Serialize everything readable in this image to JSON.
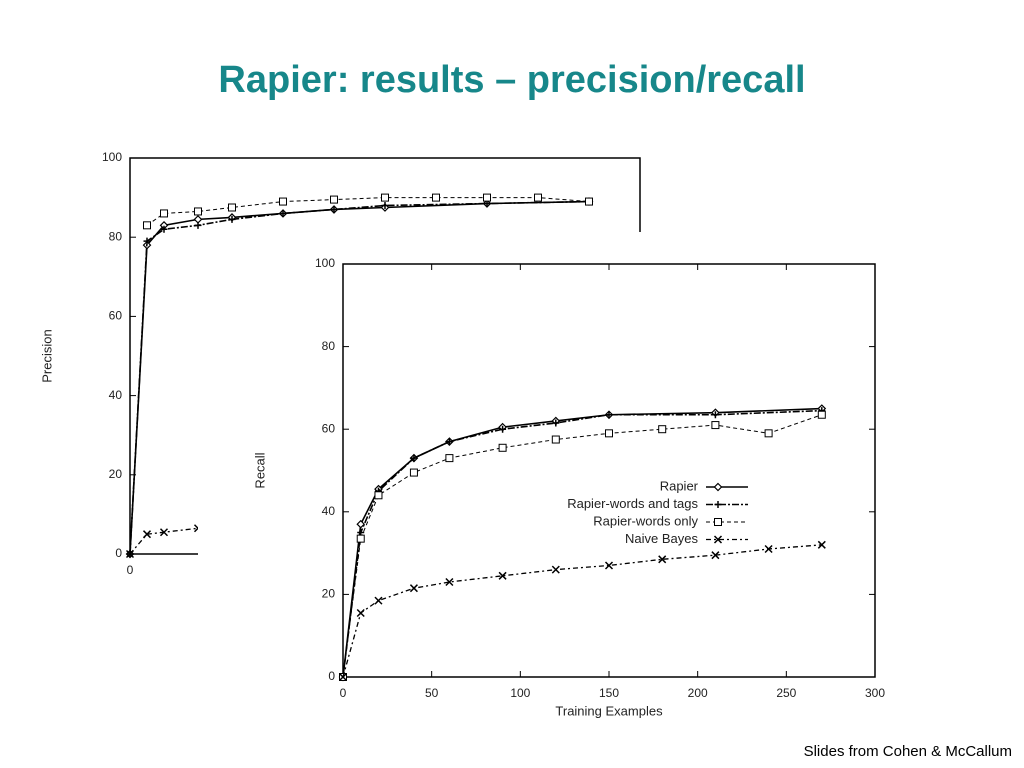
{
  "title": "Rapier: results – precision/recall",
  "footer": "Slides from Cohen & McCallum",
  "chart_data": [
    {
      "type": "line",
      "ylabel": "Precision",
      "xlim": [
        0,
        300
      ],
      "ylim": [
        0,
        100
      ],
      "xticks": [
        0
      ],
      "yticks": [
        0,
        20,
        40,
        60,
        80,
        100
      ],
      "series": [
        {
          "name": "Rapier",
          "color": "#000000",
          "marker": "diamond",
          "line_style": "solid",
          "x": [
            0,
            10,
            20,
            40,
            60,
            90,
            120,
            150,
            210,
            270
          ],
          "values": [
            0,
            78,
            83,
            84.5,
            85,
            86,
            87,
            87.5,
            88.5,
            89
          ]
        },
        {
          "name": "Rapier-words and tags",
          "color": "#000000",
          "marker": "plus",
          "line_style": "dashdot",
          "x": [
            0,
            10,
            20,
            40,
            60,
            90,
            120,
            150,
            210,
            270
          ],
          "values": [
            0,
            79,
            82,
            83,
            84.5,
            86,
            87,
            88,
            88.5,
            89
          ]
        },
        {
          "name": "Rapier-words only",
          "color": "#000000",
          "marker": "square",
          "line_style": "dashed",
          "x": [
            10,
            20,
            40,
            60,
            90,
            120,
            150,
            180,
            210,
            240,
            270
          ],
          "values": [
            83,
            86,
            86.5,
            87.5,
            89,
            89.5,
            90,
            90,
            90,
            90,
            89
          ]
        },
        {
          "name": "Naive Bayes",
          "color": "#000000",
          "marker": "cross",
          "line_style": "dashdot2",
          "x": [
            0,
            10,
            20,
            40
          ],
          "values": [
            0,
            5,
            5.5,
            6.5
          ]
        }
      ]
    },
    {
      "type": "line",
      "xlabel": "Training Examples",
      "ylabel": "Recall",
      "xlim": [
        0,
        300
      ],
      "ylim": [
        0,
        100
      ],
      "xticks": [
        0,
        50,
        100,
        150,
        200,
        250,
        300
      ],
      "yticks": [
        0,
        20,
        40,
        60,
        80,
        100
      ],
      "legend": "right",
      "series": [
        {
          "name": "Rapier",
          "color": "#000000",
          "marker": "diamond",
          "line_style": "solid",
          "x": [
            0,
            10,
            20,
            40,
            60,
            90,
            120,
            150,
            210,
            270
          ],
          "values": [
            0,
            37,
            45.5,
            53,
            57,
            60.5,
            62,
            63.5,
            64,
            65
          ]
        },
        {
          "name": "Rapier-words and tags",
          "color": "#000000",
          "marker": "plus",
          "line_style": "dashdot",
          "x": [
            0,
            10,
            20,
            40,
            60,
            90,
            120,
            150,
            210,
            270
          ],
          "values": [
            0,
            35,
            45,
            53,
            57,
            60,
            61.5,
            63.5,
            63.5,
            64.5
          ]
        },
        {
          "name": "Rapier-words only",
          "color": "#000000",
          "marker": "square",
          "line_style": "dashed",
          "x": [
            0,
            10,
            20,
            40,
            60,
            90,
            120,
            150,
            180,
            210,
            240,
            270
          ],
          "values": [
            0,
            33.5,
            44,
            49.5,
            53,
            55.5,
            57.5,
            59,
            60,
            61,
            59,
            63.5
          ]
        },
        {
          "name": "Naive Bayes",
          "color": "#000000",
          "marker": "cross",
          "line_style": "dashdot2",
          "x": [
            0,
            10,
            20,
            40,
            60,
            90,
            120,
            150,
            180,
            210,
            240,
            270
          ],
          "values": [
            0,
            15.5,
            18.5,
            21.5,
            23,
            24.5,
            26,
            27,
            28.5,
            29.5,
            31,
            32
          ]
        }
      ]
    }
  ]
}
